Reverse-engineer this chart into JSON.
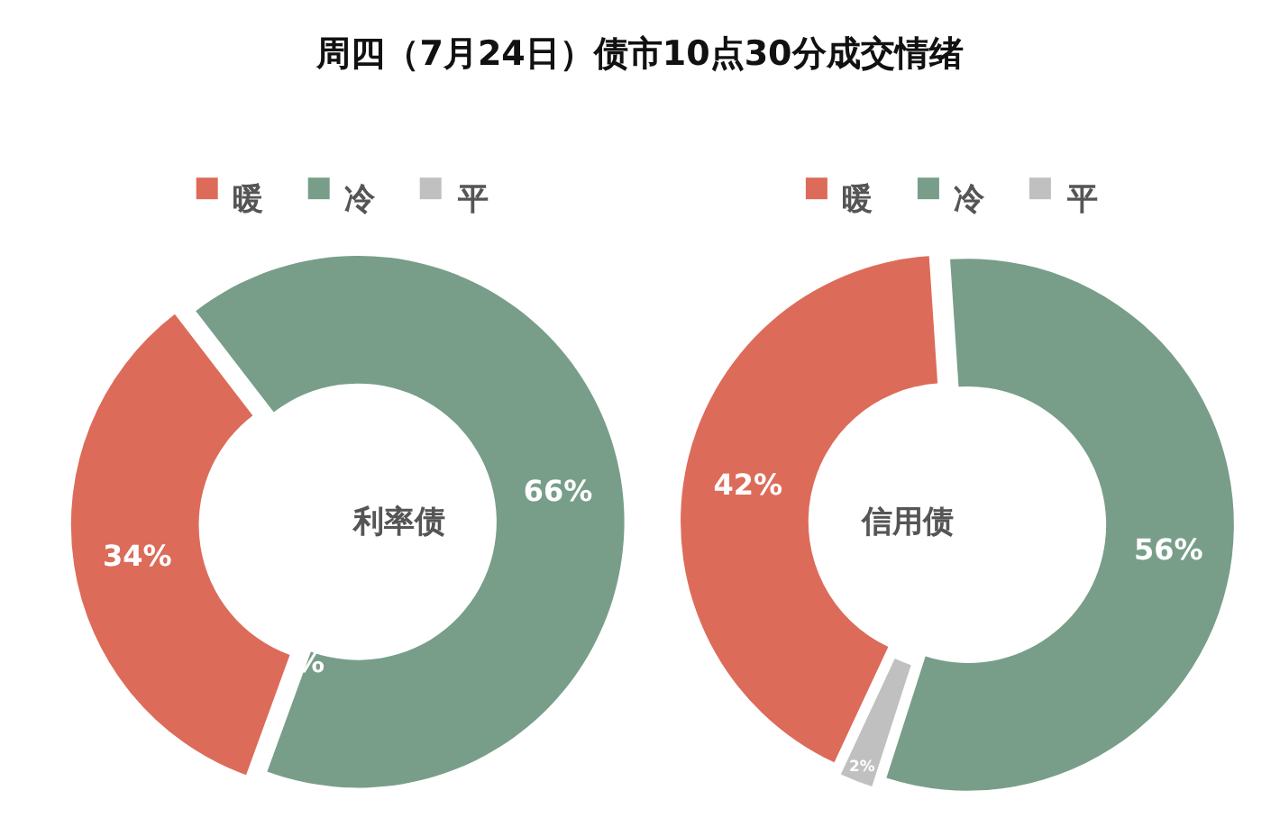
{
  "chart_data": [
    {
      "type": "donut",
      "title": "周四（7月24日）债市10点30分成交情绪",
      "annotations": [
        "利率债"
      ],
      "categories": [
        "暖",
        "冷",
        "平"
      ],
      "values": [
        34,
        66,
        0
      ],
      "value_labels": [
        "34%",
        "66%",
        "%"
      ],
      "colors": [
        "#dd6b5a",
        "#789e8a",
        "#c0c0c0"
      ],
      "legend": "top"
    },
    {
      "type": "donut",
      "annotations": [
        "信用债"
      ],
      "categories": [
        "暖",
        "冷",
        "平"
      ],
      "values": [
        42,
        56,
        2
      ],
      "value_labels": [
        "42%",
        "56%",
        "2%"
      ],
      "colors": [
        "#dd6b5a",
        "#789e8a",
        "#c0c0c0"
      ],
      "legend": "top"
    }
  ]
}
